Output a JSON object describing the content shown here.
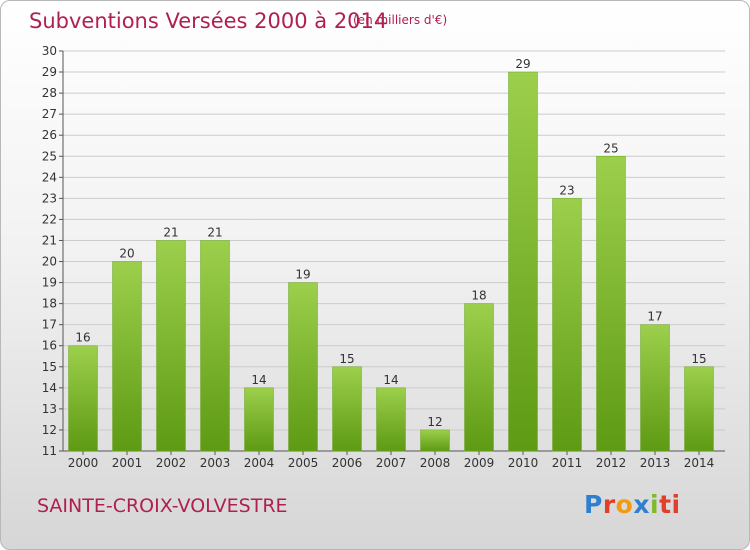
{
  "header": {
    "title": "Subventions Versées 2000 à 2014",
    "unit": "(en milliers d'€)"
  },
  "footer": {
    "commune": "SAINTE-CROIX-VOLVESTRE",
    "logo_letters": [
      "P",
      "r",
      "o",
      "x",
      "i",
      "ti"
    ]
  },
  "colors": {
    "title": "#b01e52",
    "bar_top": "#9ccf4c",
    "bar_bottom": "#5e9a14",
    "grid": "#cccccc"
  },
  "chart_data": {
    "type": "bar",
    "categories": [
      "2000",
      "2001",
      "2002",
      "2003",
      "2004",
      "2005",
      "2006",
      "2007",
      "2008",
      "2009",
      "2010",
      "2011",
      "2012",
      "2013",
      "2014"
    ],
    "values": [
      16,
      20,
      21,
      21,
      14,
      19,
      15,
      14,
      12,
      18,
      29,
      23,
      25,
      17,
      15
    ],
    "title": "Subventions Versées 2000 à 2014",
    "ylim": [
      11,
      30
    ],
    "yticks": [
      11,
      12,
      13,
      14,
      15,
      16,
      17,
      18,
      19,
      20,
      21,
      22,
      23,
      24,
      25,
      26,
      27,
      28,
      29,
      30
    ],
    "grid": "horizontal",
    "legend": "none"
  }
}
